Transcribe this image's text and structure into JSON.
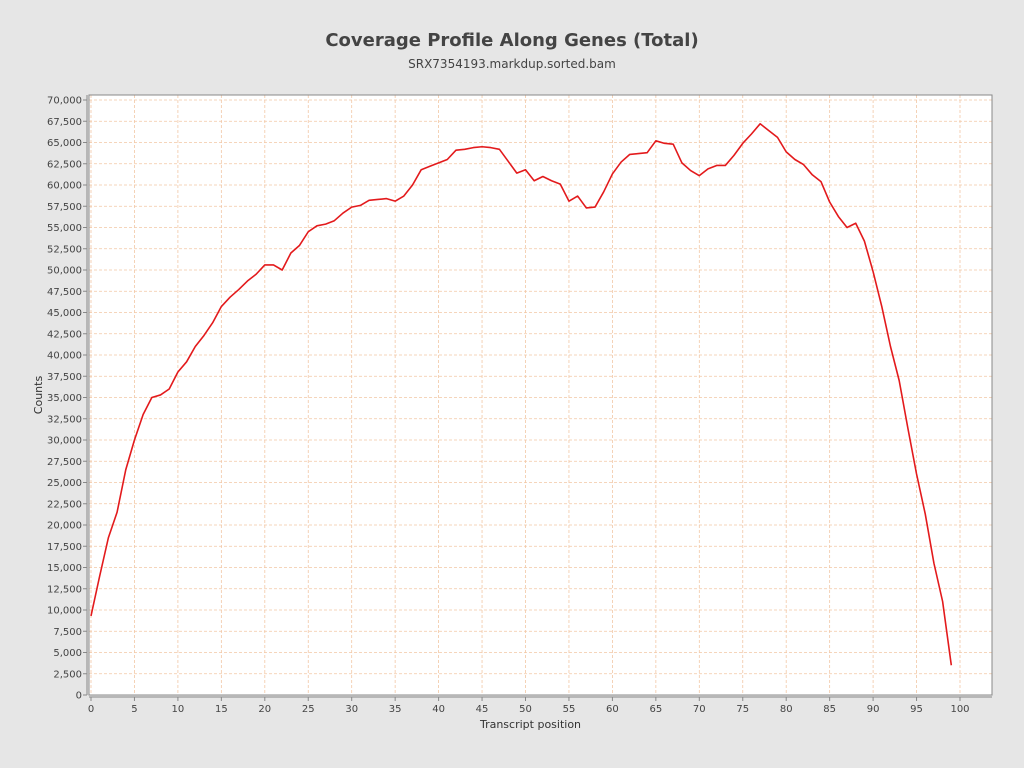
{
  "chart_data": {
    "type": "line",
    "title": "Coverage Profile Along Genes (Total)",
    "subtitle": "SRX7354193.markdup.sorted.bam",
    "xlabel": "Transcript position",
    "ylabel": "Counts",
    "xlim": [
      0,
      104
    ],
    "ylim": [
      0,
      70500
    ],
    "x_ticks": [
      "0",
      "5",
      "10",
      "15",
      "20",
      "25",
      "30",
      "35",
      "40",
      "45",
      "50",
      "55",
      "60",
      "65",
      "70",
      "75",
      "80",
      "85",
      "90",
      "95",
      "100"
    ],
    "y_ticks": [
      "0",
      "2,500",
      "5,000",
      "7,500",
      "10,000",
      "12,500",
      "15,000",
      "17,500",
      "20,000",
      "22,500",
      "25,000",
      "27,500",
      "30,000",
      "32,500",
      "35,000",
      "37,500",
      "40,000",
      "42,500",
      "45,000",
      "47,500",
      "50,000",
      "52,500",
      "55,000",
      "57,500",
      "60,000",
      "62,500",
      "65,000",
      "67,500",
      "70,000"
    ],
    "grid": true,
    "series": [
      {
        "color": "#e31a1c",
        "x": [
          0,
          1,
          2,
          3,
          4,
          5,
          6,
          7,
          8,
          9,
          10,
          11,
          12,
          13,
          14,
          15,
          16,
          17,
          18,
          19,
          20,
          21,
          22,
          23,
          24,
          25,
          26,
          27,
          28,
          29,
          30,
          31,
          32,
          33,
          34,
          35,
          36,
          37,
          38,
          39,
          40,
          41,
          42,
          43,
          44,
          45,
          46,
          47,
          48,
          49,
          50,
          51,
          52,
          53,
          54,
          55,
          56,
          57,
          58,
          59,
          60,
          61,
          62,
          63,
          64,
          65,
          66,
          67,
          68,
          69,
          70,
          71,
          72,
          73,
          74,
          75,
          76,
          77,
          78,
          79,
          80,
          81,
          82,
          83,
          84,
          85,
          86,
          87,
          88,
          89,
          90,
          91,
          92,
          93,
          94,
          95,
          96,
          97,
          98,
          99
        ],
        "y": [
          9300,
          14000,
          18500,
          21500,
          26500,
          30000,
          33000,
          35000,
          35300,
          36000,
          38000,
          39200,
          41000,
          42300,
          43800,
          45700,
          46800,
          47700,
          48700,
          49500,
          50600,
          50600,
          50000,
          52000,
          52900,
          54500,
          55200,
          55400,
          55800,
          56700,
          57400,
          57600,
          58200,
          58300,
          58400,
          58100,
          58700,
          60000,
          61800,
          62200,
          62600,
          63000,
          64100,
          64200,
          64400,
          64500,
          64400,
          64200,
          62800,
          61400,
          61800,
          60500,
          61000,
          60500,
          60100,
          58100,
          58700,
          57300,
          57400,
          59200,
          61300,
          62700,
          63600,
          63700,
          63800,
          65200,
          64900,
          64800,
          62600,
          61700,
          61100,
          61900,
          62300,
          62300,
          63500,
          64900,
          66000,
          67200,
          66400,
          65600,
          63900,
          63000,
          62400,
          61200,
          60400,
          58000,
          56300,
          55000,
          55500,
          53400,
          49800,
          45700,
          41000,
          37000,
          31400,
          26000,
          21300,
          15500,
          11000,
          3500
        ]
      }
    ]
  }
}
